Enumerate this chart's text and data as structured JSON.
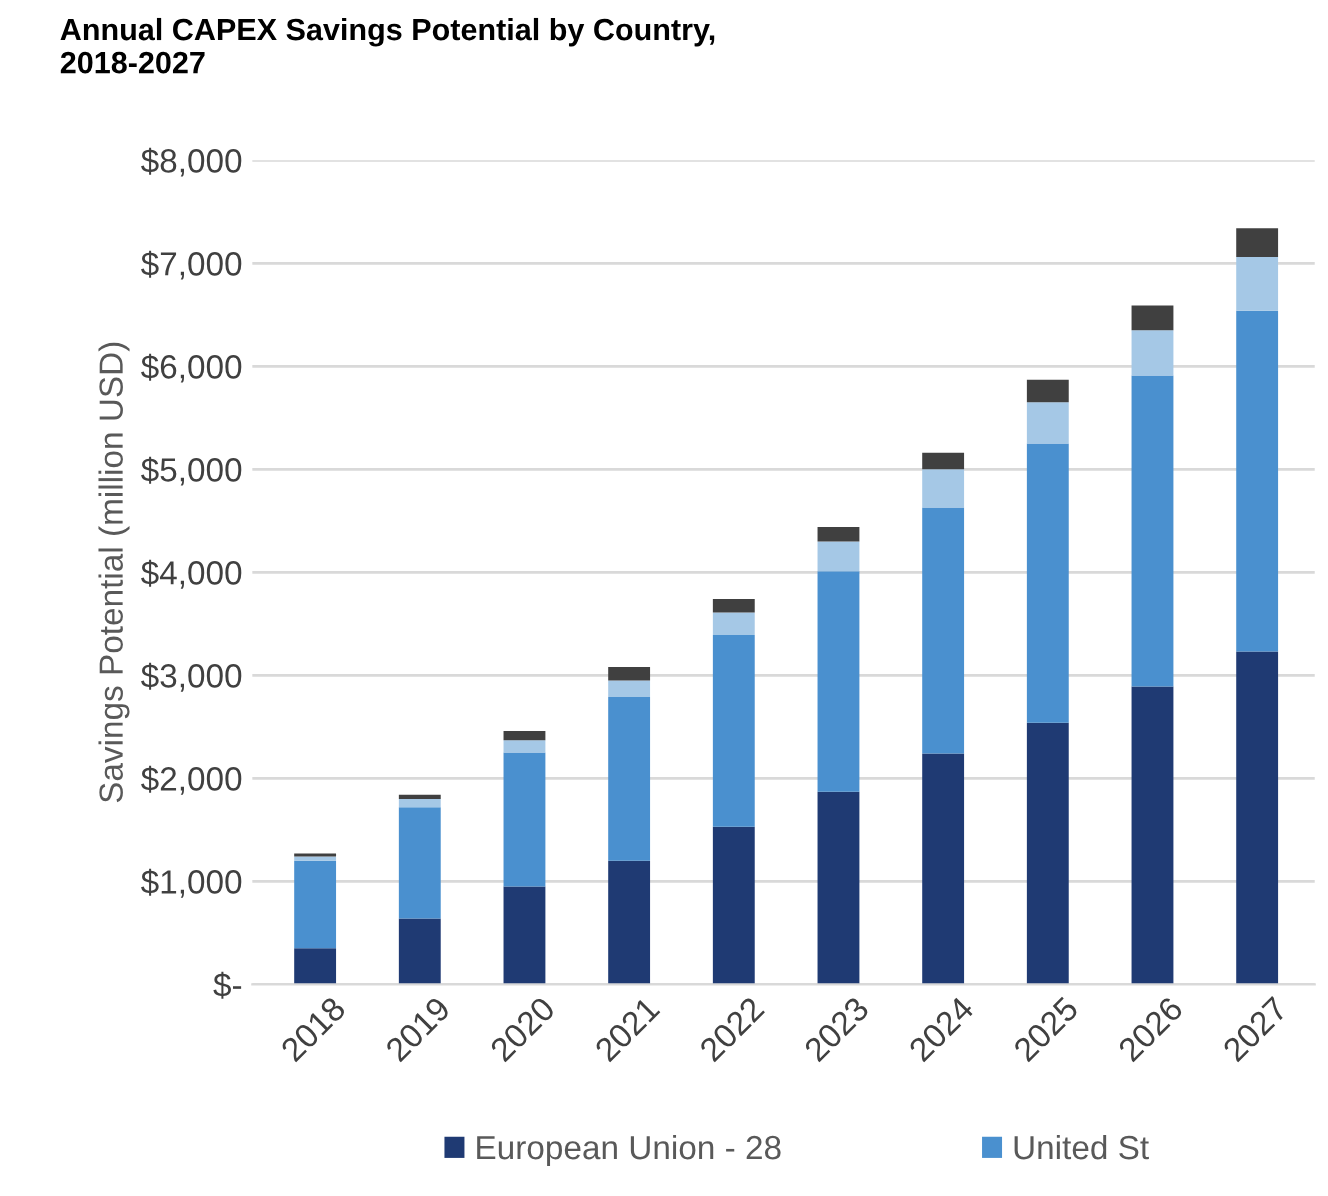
{
  "chart_data": {
    "type": "bar",
    "stacked": true,
    "title": "Annual CAPEX Savings Potential by Country,\n2018-2027",
    "ylabel": "Savings Potential (million USD)",
    "categories": [
      "2018",
      "2019",
      "2020",
      "2021",
      "2022",
      "2023",
      "2024",
      "2025",
      "2026",
      "2027"
    ],
    "series": [
      {
        "name": "European Union - 28",
        "color": "#1f3a73",
        "values": [
          350,
          640,
          950,
          1200,
          1530,
          1870,
          2240,
          2540,
          2890,
          3230
        ]
      },
      {
        "name": "United St",
        "color": "#4a90cf",
        "values": [
          850,
          1080,
          1300,
          1590,
          1860,
          2140,
          2390,
          2710,
          3020,
          3310
        ]
      },
      {
        "color": "#a5c8e6",
        "values": [
          40,
          80,
          120,
          160,
          220,
          290,
          370,
          400,
          440,
          520
        ]
      },
      {
        "color": "#404040",
        "values": [
          30,
          40,
          90,
          130,
          130,
          140,
          160,
          220,
          240,
          280
        ]
      }
    ],
    "ylim": [
      0,
      8000
    ],
    "yticks": [
      {
        "value": 0,
        "label": "$-"
      },
      {
        "value": 1000,
        "label": "$1,000"
      },
      {
        "value": 2000,
        "label": "$2,000"
      },
      {
        "value": 3000,
        "label": "$3,000"
      },
      {
        "value": 4000,
        "label": "$4,000"
      },
      {
        "value": 5000,
        "label": "$5,000"
      },
      {
        "value": 6000,
        "label": "$6,000"
      },
      {
        "value": 7000,
        "label": "$7,000"
      },
      {
        "value": 8000,
        "label": "$8,000"
      }
    ],
    "grid": "y",
    "legend": "bottom"
  }
}
